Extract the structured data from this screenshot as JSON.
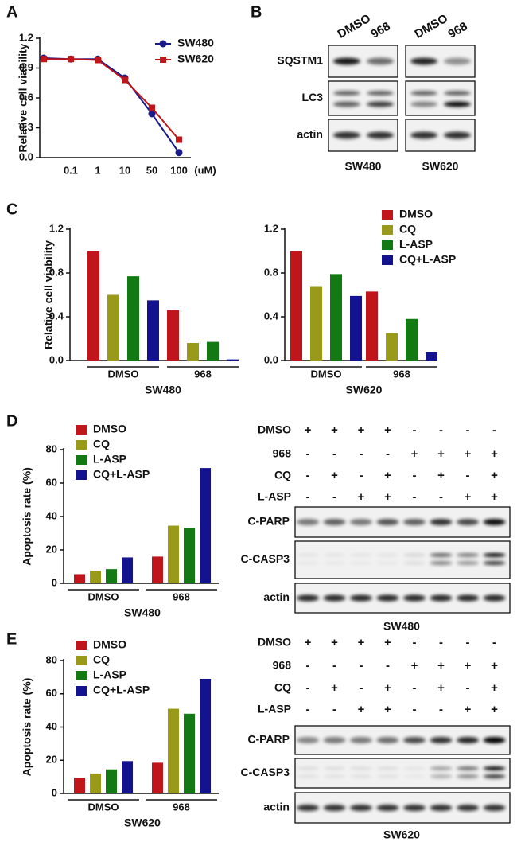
{
  "panel_labels": [
    "A",
    "B",
    "C",
    "D",
    "E"
  ],
  "chart_data": [
    {
      "type": "line",
      "ylabel": "Relative cell viability",
      "xlabel": "(uM)",
      "categories": [
        null,
        "0.1",
        "1",
        "10",
        "50",
        "100"
      ],
      "ylim": [
        0,
        1.2
      ],
      "yticks": [
        {
          "value": 0,
          "label": "0.0"
        },
        0.3,
        0.6,
        0.9,
        1.2
      ],
      "legend": "upper right",
      "series": [
        {
          "name": "SW480",
          "color": "#1a1a8c",
          "values": [
            1.0,
            0.99,
            0.99,
            0.8,
            0.44,
            0.05
          ]
        },
        {
          "name": "SW620",
          "color": "#c0151b",
          "values": [
            0.99,
            0.99,
            0.98,
            0.78,
            0.5,
            0.18
          ]
        }
      ]
    },
    {
      "type": "bar",
      "ylabel": "Relative cell viability",
      "xlabel": "SW480",
      "categories": [
        "DMSO",
        "968"
      ],
      "ylim": [
        0,
        1.2
      ],
      "yticks": [
        {
          "value": 0,
          "label": "0.0"
        },
        0.4,
        0.8,
        1.2
      ],
      "series": [
        {
          "color": "#c0151b",
          "values": [
            1.0,
            0.46
          ]
        },
        {
          "color": "#9a9a1a",
          "values": [
            0.6,
            0.16
          ]
        },
        {
          "color": "#137a13",
          "values": [
            0.77,
            0.17
          ]
        },
        {
          "color": "#13138f",
          "values": [
            0.55,
            0.01
          ]
        }
      ]
    },
    {
      "type": "bar",
      "xlabel": "SW620",
      "legend": "upper right",
      "categories": [
        "DMSO",
        "968"
      ],
      "ylim": [
        0,
        1.2
      ],
      "yticks": [
        {
          "value": 0,
          "label": "0.0"
        },
        0.4,
        0.8,
        1.2
      ],
      "series": [
        {
          "name": "DMSO",
          "color": "#c0151b",
          "values": [
            1.0,
            0.63
          ]
        },
        {
          "name": "CQ",
          "color": "#9a9a1a",
          "values": [
            0.68,
            0.25
          ]
        },
        {
          "name": "L-ASP",
          "color": "#137a13",
          "values": [
            0.79,
            0.38
          ]
        },
        {
          "name": "CQ+L-ASP",
          "color": "#13138f",
          "values": [
            0.59,
            0.08
          ]
        }
      ]
    },
    {
      "type": "bar",
      "ylabel": "Apoptosis rate (%)",
      "xlabel": "SW480",
      "legend": "upper left",
      "categories": [
        "DMSO",
        "968"
      ],
      "ylim": [
        0,
        80
      ],
      "yticks": [
        0,
        20,
        40,
        60,
        80
      ],
      "series": [
        {
          "name": "DMSO",
          "color": "#c0151b",
          "values": [
            5.5,
            16
          ]
        },
        {
          "name": "CQ",
          "color": "#9a9a1a",
          "values": [
            7.5,
            34.5
          ]
        },
        {
          "name": "L-ASP",
          "color": "#137a13",
          "values": [
            8.5,
            33
          ]
        },
        {
          "name": "CQ+L-ASP",
          "color": "#13138f",
          "values": [
            15.5,
            69
          ]
        }
      ]
    },
    {
      "type": "bar",
      "ylabel": "Apoptosis rate (%)",
      "xlabel": "SW620",
      "legend": "upper left",
      "categories": [
        "DMSO",
        "968"
      ],
      "ylim": [
        0,
        80
      ],
      "yticks": [
        0,
        20,
        40,
        60,
        80
      ],
      "series": [
        {
          "name": "DMSO",
          "color": "#c0151b",
          "values": [
            9.5,
            18.5
          ]
        },
        {
          "name": "CQ",
          "color": "#9a9a1a",
          "values": [
            12,
            51
          ]
        },
        {
          "name": "L-ASP",
          "color": "#137a13",
          "values": [
            14.5,
            48
          ]
        },
        {
          "name": "CQ+L-ASP",
          "color": "#13138f",
          "values": [
            19.5,
            69
          ]
        }
      ]
    }
  ],
  "western_blots": [
    {
      "columns": [
        {
          "cell_line": "SW480",
          "lanes": [
            "DMSO",
            "968"
          ]
        },
        {
          "cell_line": "SW620",
          "lanes": [
            "DMSO",
            "968"
          ]
        }
      ],
      "rows": [
        "SQSTM1",
        "LC3",
        "actin"
      ]
    },
    {
      "cell_line": "SW480",
      "rows": [
        "C-PARP",
        "C-CASP3",
        "actin"
      ],
      "conditions": [
        {
          "name": "DMSO",
          "signs": [
            "+",
            "+",
            "+",
            "+",
            "-",
            "-",
            "-",
            "-"
          ]
        },
        {
          "name": "968",
          "signs": [
            "-",
            "-",
            "-",
            "-",
            "+",
            "+",
            "+",
            "+"
          ]
        },
        {
          "name": "CQ",
          "signs": [
            "-",
            "+",
            "-",
            "+",
            "-",
            "+",
            "-",
            "+"
          ]
        },
        {
          "name": "L-ASP",
          "signs": [
            "-",
            "-",
            "+",
            "+",
            "-",
            "-",
            "+",
            "+"
          ]
        }
      ]
    },
    {
      "cell_line": "SW620",
      "rows": [
        "C-PARP",
        "C-CASP3",
        "actin"
      ],
      "conditions": [
        {
          "name": "DMSO",
          "signs": [
            "+",
            "+",
            "+",
            "+",
            "-",
            "-",
            "-",
            "-"
          ]
        },
        {
          "name": "968",
          "signs": [
            "-",
            "-",
            "-",
            "-",
            "+",
            "+",
            "+",
            "+"
          ]
        },
        {
          "name": "CQ",
          "signs": [
            "-",
            "+",
            "-",
            "+",
            "-",
            "+",
            "-",
            "+"
          ]
        },
        {
          "name": "L-ASP",
          "signs": [
            "-",
            "-",
            "+",
            "+",
            "-",
            "-",
            "+",
            "+"
          ]
        }
      ]
    }
  ]
}
